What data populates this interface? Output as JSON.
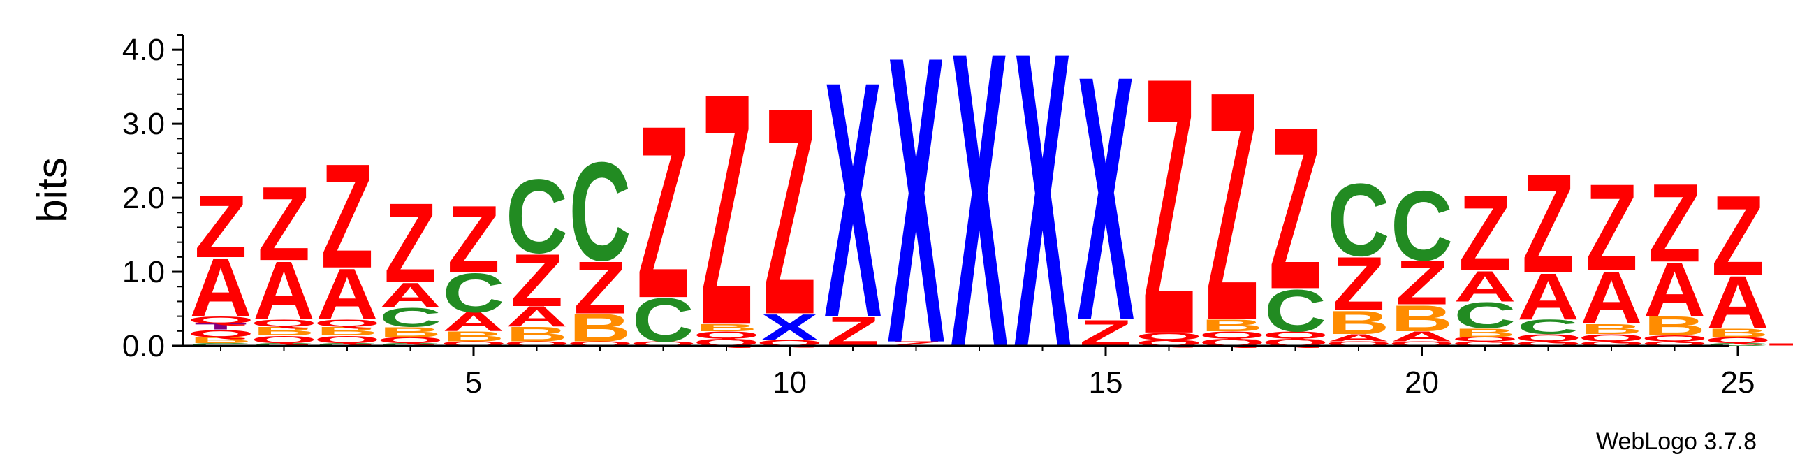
{
  "chart_data": {
    "type": "sequence-logo",
    "ylabel": "bits",
    "ylim": [
      0,
      4.2
    ],
    "yticks": [
      "0.0",
      "1.0",
      "2.0",
      "3.0",
      "4.0"
    ],
    "xticks": [
      "5",
      "10",
      "15",
      "20",
      "25"
    ],
    "xtick_positions": [
      5,
      10,
      15,
      20,
      25
    ],
    "credit": "WebLogo 3.7.8",
    "colors": {
      "Z": "#ff0000",
      "A": "#ff0000",
      "Q": "#ff0000",
      "X": "#0000ff",
      "C": "#228b22",
      "B": "#ff8c00",
      "T": "#800080"
    },
    "positions": [
      {
        "pos": 1,
        "stack": [
          [
            "C",
            0.04
          ],
          [
            "B",
            0.08
          ],
          [
            "Q",
            0.1
          ],
          [
            "T",
            0.08
          ],
          [
            "Q",
            0.1
          ],
          [
            "A",
            0.8
          ],
          [
            "Z",
            0.86
          ]
        ]
      },
      {
        "pos": 2,
        "stack": [
          [
            "C",
            0.04
          ],
          [
            "Q",
            0.1
          ],
          [
            "B",
            0.12
          ],
          [
            "Q",
            0.1
          ],
          [
            "A",
            0.8
          ],
          [
            "Z",
            1.02
          ]
        ]
      },
      {
        "pos": 3,
        "stack": [
          [
            "C",
            0.04
          ],
          [
            "Q",
            0.1
          ],
          [
            "B",
            0.12
          ],
          [
            "Q",
            0.1
          ],
          [
            "A",
            0.7
          ],
          [
            "Z",
            1.44
          ]
        ]
      },
      {
        "pos": 4,
        "stack": [
          [
            "C",
            0.04
          ],
          [
            "Q",
            0.08
          ],
          [
            "B",
            0.14
          ],
          [
            "C",
            0.26
          ],
          [
            "A",
            0.34
          ],
          [
            "Z",
            1.1
          ]
        ]
      },
      {
        "pos": 5,
        "stack": [
          [
            "Q",
            0.06
          ],
          [
            "B",
            0.14
          ],
          [
            "A",
            0.26
          ],
          [
            "C",
            0.54
          ],
          [
            "Z",
            0.92
          ]
        ]
      },
      {
        "pos": 6,
        "stack": [
          [
            "Q",
            0.06
          ],
          [
            "B",
            0.2
          ],
          [
            "A",
            0.28
          ],
          [
            "Z",
            0.72
          ],
          [
            "C",
            1.02
          ]
        ]
      },
      {
        "pos": 7,
        "stack": [
          [
            "Q",
            0.06
          ],
          [
            "B",
            0.38
          ],
          [
            "Z",
            0.72
          ],
          [
            "C",
            1.36
          ]
        ]
      },
      {
        "pos": 8,
        "stack": [
          [
            "Q",
            0.06
          ],
          [
            "C",
            0.6
          ],
          [
            "Z",
            2.38
          ]
        ]
      },
      {
        "pos": 9,
        "stack": [
          [
            "Q",
            0.1
          ],
          [
            "Q",
            0.1
          ],
          [
            "B",
            0.1
          ],
          [
            "Z",
            3.2
          ]
        ]
      },
      {
        "pos": 10,
        "stack": [
          [
            "Q",
            0.08
          ],
          [
            "X",
            0.36
          ],
          [
            "Z",
            2.86
          ]
        ]
      },
      {
        "pos": 11,
        "stack": [
          [
            "Z",
            0.4
          ],
          [
            "X",
            3.26
          ]
        ]
      },
      {
        "pos": 12,
        "stack": [
          [
            "Z",
            0.06
          ],
          [
            "X",
            3.96
          ]
        ]
      },
      {
        "pos": 13,
        "stack": [
          [
            "X",
            4.08
          ]
        ]
      },
      {
        "pos": 14,
        "stack": [
          [
            "X",
            4.08
          ]
        ]
      },
      {
        "pos": 15,
        "stack": [
          [
            "Z",
            0.36
          ],
          [
            "X",
            3.38
          ]
        ]
      },
      {
        "pos": 16,
        "stack": [
          [
            "Q",
            0.08
          ],
          [
            "Q",
            0.1
          ],
          [
            "Z",
            3.54
          ]
        ]
      },
      {
        "pos": 17,
        "stack": [
          [
            "Q",
            0.1
          ],
          [
            "Q",
            0.1
          ],
          [
            "B",
            0.16
          ],
          [
            "Z",
            3.16
          ]
        ]
      },
      {
        "pos": 18,
        "stack": [
          [
            "Q",
            0.1
          ],
          [
            "Q",
            0.1
          ],
          [
            "C",
            0.58
          ],
          [
            "Z",
            2.24
          ]
        ]
      },
      {
        "pos": 19,
        "stack": [
          [
            "Q",
            0.06
          ],
          [
            "A",
            0.1
          ],
          [
            "B",
            0.32
          ],
          [
            "Z",
            0.74
          ],
          [
            "C",
            1.0
          ]
        ]
      },
      {
        "pos": 20,
        "stack": [
          [
            "Q",
            0.06
          ],
          [
            "A",
            0.14
          ],
          [
            "B",
            0.36
          ],
          [
            "Z",
            0.6
          ],
          [
            "C",
            0.96
          ]
        ]
      },
      {
        "pos": 21,
        "stack": [
          [
            "Q",
            0.06
          ],
          [
            "Q",
            0.06
          ],
          [
            "B",
            0.12
          ],
          [
            "C",
            0.36
          ],
          [
            "A",
            0.42
          ],
          [
            "Z",
            1.04
          ]
        ]
      },
      {
        "pos": 22,
        "stack": [
          [
            "Q",
            0.06
          ],
          [
            "Q",
            0.1
          ],
          [
            "C",
            0.2
          ],
          [
            "A",
            0.64
          ],
          [
            "Z",
            1.36
          ]
        ]
      },
      {
        "pos": 23,
        "stack": [
          [
            "Q",
            0.06
          ],
          [
            "Q",
            0.1
          ],
          [
            "B",
            0.14
          ],
          [
            "A",
            0.72
          ],
          [
            "Z",
            1.2
          ]
        ]
      },
      {
        "pos": 24,
        "stack": [
          [
            "Q",
            0.06
          ],
          [
            "Q",
            0.08
          ],
          [
            "B",
            0.26
          ],
          [
            "A",
            0.74
          ],
          [
            "Z",
            1.08
          ]
        ]
      },
      {
        "pos": 25,
        "stack": [
          [
            "C",
            0.04
          ],
          [
            "Q",
            0.08
          ],
          [
            "B",
            0.12
          ],
          [
            "A",
            0.72
          ],
          [
            "Z",
            1.1
          ]
        ]
      }
    ]
  }
}
